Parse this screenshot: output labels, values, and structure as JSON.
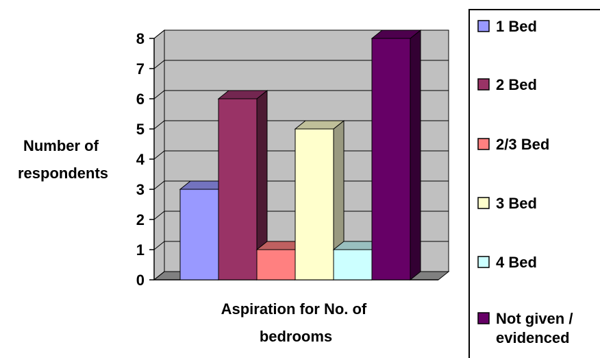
{
  "chart_data": {
    "type": "bar",
    "categories": [
      "1 Bed",
      "2 Bed",
      "2/3 Bed",
      "3 Bed",
      "4 Bed",
      "Not given / evidenced"
    ],
    "values": [
      3,
      6,
      1,
      5,
      1,
      8
    ],
    "xlabel": [
      "Aspiration for No. of",
      "bedrooms"
    ],
    "ylabel": [
      "Number of",
      "respondents"
    ],
    "ylim": [
      0,
      8
    ],
    "yticks": [
      "0",
      "1",
      "2",
      "3",
      "4",
      "5",
      "6",
      "7",
      "8"
    ],
    "grid": true,
    "legend": {
      "placement": "right",
      "entries": [
        "1 Bed",
        "2 Bed",
        "2/3 Bed",
        "3 Bed",
        "4 Bed",
        [
          "Not given /",
          "evidenced"
        ]
      ]
    },
    "colors": {
      "bars": [
        "#9999ff",
        "#993366",
        "#ff8080",
        "#ffffcc",
        "#ccffff",
        "#660066"
      ],
      "tops": [
        "#7373bf",
        "#732650",
        "#bf6060",
        "#bfbf99",
        "#99bfbf",
        "#4d004d"
      ],
      "sides": [
        "#5c5c99",
        "#4d1a33",
        "#994d4d",
        "#999980",
        "#809999",
        "#330033"
      ],
      "wall": "#c0c0c0",
      "floor": "#808080"
    }
  }
}
